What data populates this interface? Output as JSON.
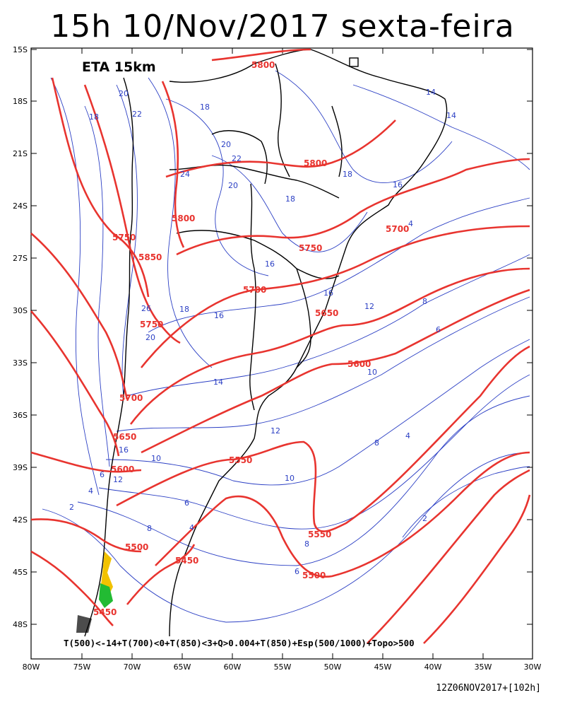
{
  "title": "15h 10/Nov/2017 sexta-feira",
  "model_label": "ETA 15km",
  "legend_text": "T(500)<-14+T(700)<0+T(850)<3+Q>0.004+T(850)+Esp(500/1000)+Topo>500",
  "run_info": "12Z06NOV2017+[102h]",
  "colors": {
    "thickness": "#e8342f",
    "temperature": "#2b3fc4",
    "coast": "#000000",
    "snow_yellow": "#f2c200",
    "snow_green": "#22bb33"
  },
  "lat_ticks": [
    "15S",
    "18S",
    "21S",
    "24S",
    "27S",
    "30S",
    "33S",
    "36S",
    "39S",
    "42S",
    "45S",
    "48S"
  ],
  "lon_ticks": [
    "80W",
    "75W",
    "70W",
    "65W",
    "60W",
    "55W",
    "50W",
    "45W",
    "40W",
    "35W",
    "30W"
  ],
  "thickness_labels": [
    "5800",
    "5800",
    "5800",
    "5750",
    "5850",
    "5750",
    "5750",
    "5700",
    "5700",
    "5700",
    "5650",
    "5650",
    "5600",
    "5600",
    "5550",
    "5550",
    "5500",
    "5500",
    "5450",
    "5450"
  ],
  "temperature_labels": [
    "20",
    "18",
    "18",
    "22",
    "20",
    "22",
    "20",
    "18",
    "24",
    "14",
    "14",
    "16",
    "16",
    "18",
    "26",
    "20",
    "16",
    "14",
    "12",
    "16",
    "12",
    "10",
    "8",
    "6",
    "4",
    "8",
    "10",
    "4",
    "18",
    "16",
    "12",
    "10",
    "6",
    "4",
    "2",
    "8",
    "6",
    "4",
    "2",
    "8",
    "6"
  ]
}
